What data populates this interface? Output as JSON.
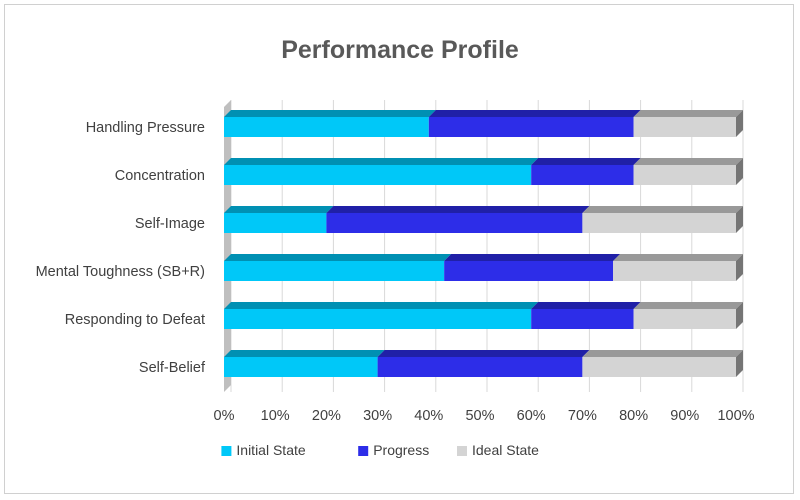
{
  "chart_data": {
    "type": "bar",
    "orientation": "horizontal",
    "stacked": "percent",
    "style": "3d",
    "title": "Performance Profile",
    "xlabel": "",
    "ylabel": "",
    "categories": [
      "Handling Pressure",
      "Concentration",
      "Self-Image",
      "Mental Toughness (SB+R)",
      "Responding to Defeat",
      "Self-Belief"
    ],
    "series": [
      {
        "name": "Initial State",
        "color": "#00C8F8",
        "values": [
          40,
          60,
          20,
          43,
          60,
          30
        ]
      },
      {
        "name": "Progress",
        "color": "#2D2DE8",
        "values": [
          40,
          20,
          50,
          33,
          20,
          40
        ]
      },
      {
        "name": "Ideal State",
        "color": "#D4D4D4",
        "values": [
          20,
          20,
          30,
          24,
          20,
          30
        ]
      }
    ],
    "xlim": [
      0,
      100
    ],
    "xticks": [
      "0%",
      "10%",
      "20%",
      "30%",
      "40%",
      "50%",
      "60%",
      "70%",
      "80%",
      "90%",
      "100%"
    ],
    "grid": true,
    "legend": "bottom"
  }
}
